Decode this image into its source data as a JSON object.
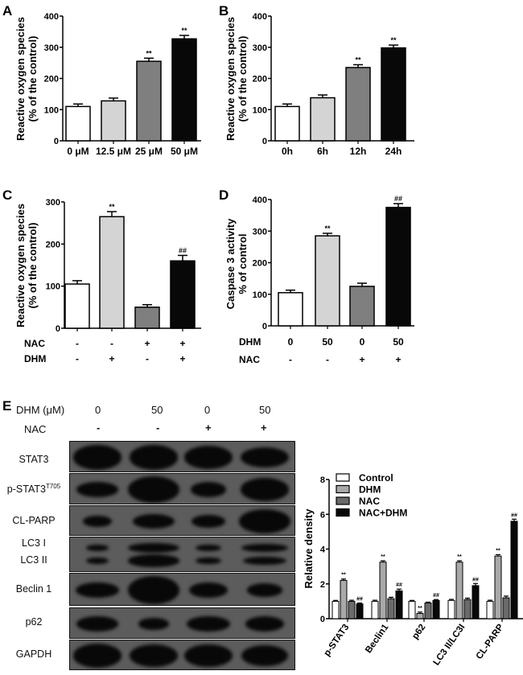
{
  "chart_data": [
    {
      "panel": "A",
      "type": "bar",
      "ylabel": [
        "Reactive oxygen species",
        "(%  of the control)"
      ],
      "categories": [
        "0 μM",
        "12.5 μM",
        "25 μM",
        "50 μM"
      ],
      "values": [
        110,
        128,
        255,
        327
      ],
      "errors": [
        8,
        9,
        10,
        11
      ],
      "annotations": [
        "",
        "",
        "**",
        "**"
      ],
      "ylim": [
        0,
        400
      ],
      "yticks": [
        0,
        100,
        200,
        300,
        400
      ],
      "colors": [
        "#ffffff",
        "#d4d4d4",
        "#7f7f7f",
        "#080808"
      ]
    },
    {
      "panel": "B",
      "type": "bar",
      "ylabel": [
        "Reactive oxygen species",
        "(% of the control)"
      ],
      "categories": [
        "0h",
        "6h",
        "12h",
        "24h"
      ],
      "values": [
        110,
        138,
        235,
        298
      ],
      "errors": [
        8,
        9,
        9,
        9
      ],
      "annotations": [
        "",
        "",
        "**",
        "**"
      ],
      "ylim": [
        0,
        400
      ],
      "yticks": [
        0,
        100,
        200,
        300,
        400
      ],
      "colors": [
        "#ffffff",
        "#d4d4d4",
        "#7f7f7f",
        "#080808"
      ]
    },
    {
      "panel": "C",
      "type": "bar",
      "ylabel": [
        "Reactive oxygen species",
        "(%  of the control)"
      ],
      "categories": [
        "1",
        "2",
        "3",
        "4"
      ],
      "conditions": [
        {
          "name": "NAC",
          "values": [
            "-",
            "-",
            "+",
            "+"
          ]
        },
        {
          "name": "DHM",
          "values": [
            "-",
            "+",
            "-",
            "+"
          ]
        }
      ],
      "values": [
        105,
        265,
        50,
        160
      ],
      "errors": [
        8,
        12,
        6,
        13
      ],
      "annotations": [
        "",
        "**",
        "",
        "##"
      ],
      "ylim": [
        0,
        300
      ],
      "yticks": [
        0,
        100,
        200,
        300
      ],
      "colors": [
        "#ffffff",
        "#d4d4d4",
        "#7f7f7f",
        "#080808"
      ]
    },
    {
      "panel": "D",
      "type": "bar",
      "ylabel": [
        "Caspase 3 activity",
        "% of control"
      ],
      "categories": [
        "1",
        "2",
        "3",
        "4"
      ],
      "conditions": [
        {
          "name": "DHM",
          "values": [
            "0",
            "50",
            "0",
            "50"
          ]
        },
        {
          "name": "NAC",
          "values": [
            "-",
            "-",
            "+",
            "+"
          ]
        }
      ],
      "values": [
        105,
        285,
        125,
        375
      ],
      "errors": [
        8,
        8,
        10,
        12
      ],
      "annotations": [
        "",
        "**",
        "",
        "##"
      ],
      "ylim": [
        0,
        400
      ],
      "yticks": [
        0,
        100,
        200,
        300,
        400
      ],
      "colors": [
        "#ffffff",
        "#d4d4d4",
        "#7f7f7f",
        "#080808"
      ]
    },
    {
      "panel": "E",
      "type": "bar",
      "ylabel": [
        "Relative density"
      ],
      "categories": [
        "p-STAT3",
        "Beclin1",
        "p62",
        "LC3 II/LC3I",
        "CL-PARP"
      ],
      "series": [
        {
          "name": "Control",
          "color": "#ffffff",
          "values": [
            1.0,
            1.0,
            1.0,
            1.05,
            1.0
          ],
          "errors": [
            0.05,
            0.06,
            0.05,
            0.06,
            0.06
          ],
          "annotations": [
            "",
            "",
            "",
            "",
            ""
          ]
        },
        {
          "name": "DHM",
          "color": "#a9a9a9",
          "values": [
            2.2,
            3.25,
            0.3,
            3.25,
            3.6
          ],
          "errors": [
            0.08,
            0.08,
            0.08,
            0.08,
            0.08
          ],
          "annotations": [
            "**",
            "**",
            "**",
            "**",
            "**"
          ]
        },
        {
          "name": "NAC",
          "color": "#6a6a6a",
          "values": [
            1.0,
            1.15,
            0.9,
            1.1,
            1.2
          ],
          "errors": [
            0.06,
            0.08,
            0.05,
            0.08,
            0.1
          ],
          "annotations": [
            "",
            "",
            "",
            "",
            ""
          ]
        },
        {
          "name": "NAC+DHM",
          "color": "#080808",
          "values": [
            0.85,
            1.6,
            1.05,
            1.9,
            5.6
          ],
          "errors": [
            0.05,
            0.1,
            0.05,
            0.12,
            0.12
          ],
          "annotations": [
            "##",
            "##",
            "##",
            "##",
            "##"
          ]
        }
      ],
      "ylim": [
        0,
        8
      ],
      "yticks": [
        0,
        2,
        4,
        6,
        8
      ],
      "legend": "top-left"
    }
  ],
  "blot": {
    "dhm_label": "DHM (μM)",
    "nac_label": "NAC",
    "dhm_values": [
      "0",
      "50",
      "0",
      "50"
    ],
    "nac_values": [
      "-",
      "-",
      "+",
      "+"
    ],
    "rows": [
      "STAT3",
      "p-STAT3",
      "CL-PARP",
      "LC3 I",
      "LC3 II",
      "Beclin 1",
      "p62",
      "GAPDH"
    ],
    "pstat3_superscript": "T705"
  }
}
